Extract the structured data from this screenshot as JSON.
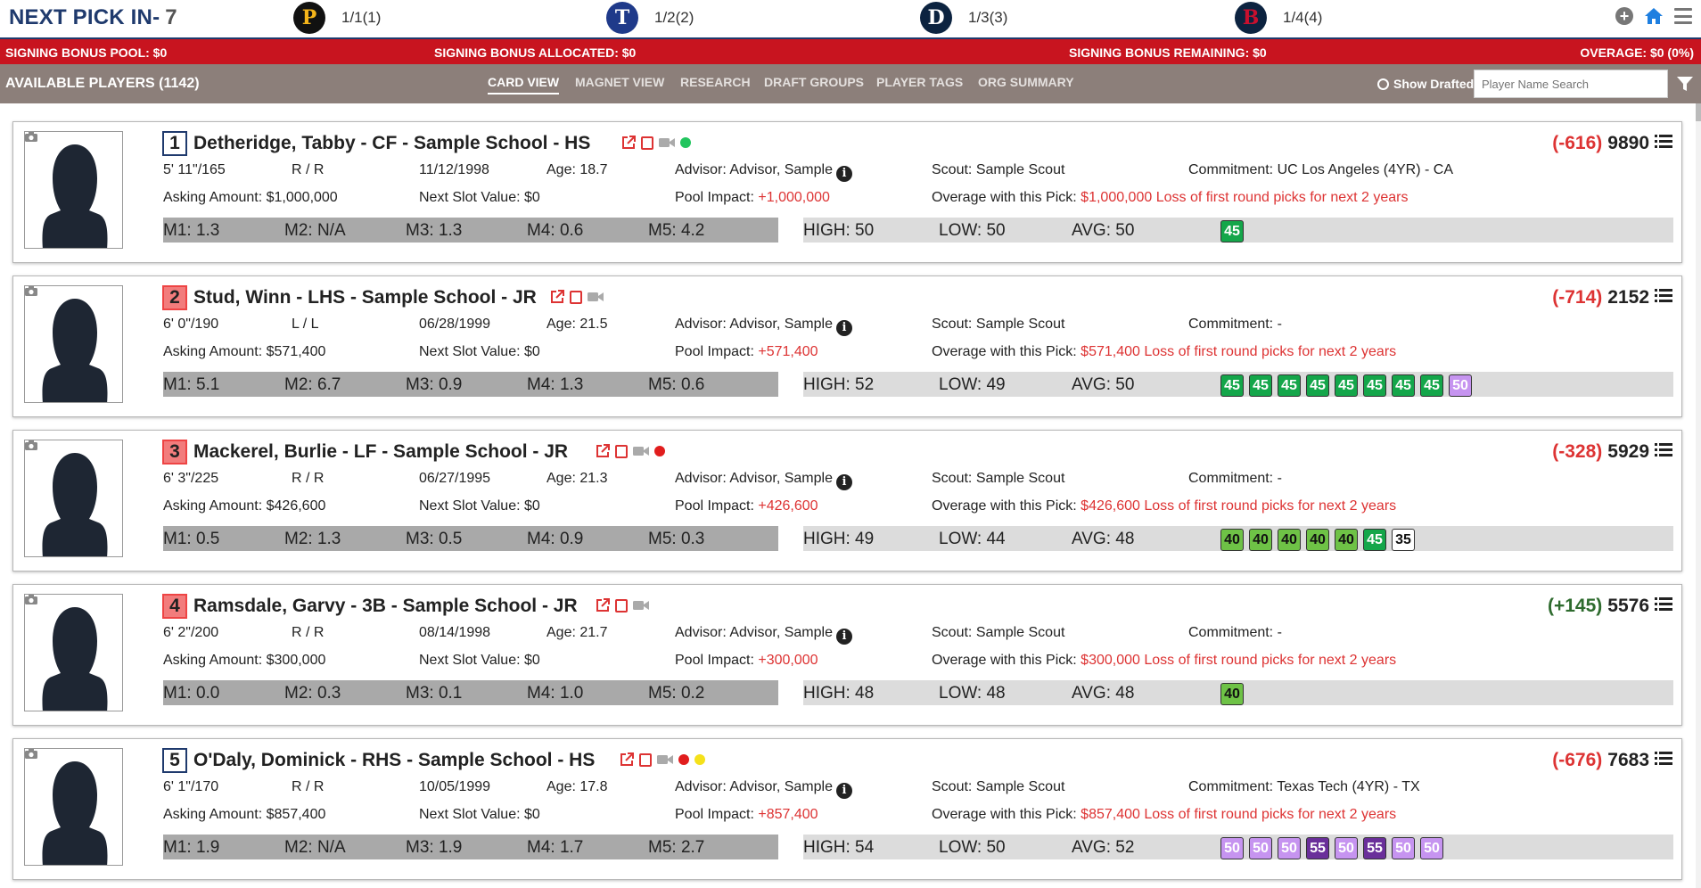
{
  "header": {
    "next_pick_label": "NEXT PICK IN-",
    "next_pick_count": "7",
    "teams": [
      {
        "icon": "pirates-p-logo",
        "letter": "P",
        "pick": "1/1(1)",
        "bg": "#111111",
        "fg": "#f4b41a"
      },
      {
        "icon": "rangers-t-logo",
        "letter": "T",
        "pick": "1/2(2)",
        "bg": "#1f3a8a",
        "fg": "#ffffff"
      },
      {
        "icon": "tigers-d-logo",
        "letter": "D",
        "pick": "1/3(3)",
        "bg": "#0c2340",
        "fg": "#ffffff"
      },
      {
        "icon": "redsox-b-logo",
        "letter": "B",
        "pick": "1/4(4)",
        "bg": "#0c2340",
        "fg": "#c8102e"
      }
    ]
  },
  "bonus": {
    "pool": "SIGNING BONUS POOL: $0",
    "allocated": "SIGNING BONUS ALLOCATED: $0",
    "remaining": "SIGNING BONUS REMAINING: $0",
    "overage": "OVERAGE: $0 (0%)"
  },
  "nav": {
    "available": "AVAILABLE PLAYERS (1142)",
    "tabs": [
      "CARD VIEW",
      "MAGNET VIEW",
      "RESEARCH",
      "DRAFT GROUPS",
      "PLAYER TAGS",
      "ORG SUMMARY"
    ],
    "active_tab": "CARD VIEW",
    "show_drafted": "Show Drafted",
    "search_placeholder": "Player Name Search"
  },
  "labels": {
    "asking": "Asking Amount: ",
    "next_slot": "Next Slot Value: ",
    "pool_impact": "Pool Impact: ",
    "overage": "Overage with this Pick: ",
    "loss": "Loss of first round picks for next 2 years",
    "advisor": "Advisor: ",
    "scout": "Scout: ",
    "commitment": "Commitment: ",
    "age": "Age: "
  },
  "players": [
    {
      "rank": "1",
      "rank_style": "plain",
      "name": "Detheridge, Tabby - CF - Sample School - HS",
      "status_dots": [
        "#22c55e"
      ],
      "delta": "(-616)",
      "delta_sign": "neg",
      "total": "9890",
      "height_weight": "5' 11\"/165",
      "bats_throws": "R / R",
      "dob": "11/12/1998",
      "age": "18.7",
      "advisor": "Advisor, Sample",
      "scout": "Sample Scout",
      "commitment": "UC Los Angeles (4YR) - CA",
      "asking": "$1,000,000",
      "next_slot": "$0",
      "pool_impact": "+1,000,000",
      "overage": "$1,000,000",
      "m1": "M1: 1.3",
      "m2": "M2: N/A",
      "m3": "M3: 1.3",
      "m4": "M4: 0.6",
      "m5": "M5: 4.2",
      "high": "HIGH: 50",
      "low": "LOW: 50",
      "avg": "AVG: 50",
      "grades": [
        {
          "v": "45",
          "c": "green"
        }
      ]
    },
    {
      "rank": "2",
      "rank_style": "pink",
      "name": "Stud, Winn - LHS - Sample School - JR",
      "status_dots": [],
      "delta": "(-714)",
      "delta_sign": "neg",
      "total": "2152",
      "height_weight": "6' 0\"/190",
      "bats_throws": "L / L",
      "dob": "06/28/1999",
      "age": "21.5",
      "advisor": "Advisor, Sample",
      "scout": "Sample Scout",
      "commitment": "-",
      "asking": "$571,400",
      "next_slot": "$0",
      "pool_impact": "+571,400",
      "overage": "$571,400",
      "m1": "M1: 5.1",
      "m2": "M2: 6.7",
      "m3": "M3: 0.9",
      "m4": "M4: 1.3",
      "m5": "M5: 0.6",
      "high": "HIGH: 52",
      "low": "LOW: 49",
      "avg": "AVG: 50",
      "grades": [
        {
          "v": "45",
          "c": "green"
        },
        {
          "v": "45",
          "c": "green"
        },
        {
          "v": "45",
          "c": "green"
        },
        {
          "v": "45",
          "c": "green"
        },
        {
          "v": "45",
          "c": "green"
        },
        {
          "v": "45",
          "c": "green"
        },
        {
          "v": "45",
          "c": "green"
        },
        {
          "v": "45",
          "c": "green"
        },
        {
          "v": "50",
          "c": "violet"
        }
      ]
    },
    {
      "rank": "3",
      "rank_style": "pink",
      "name": "Mackerel, Burlie - LF - Sample School - JR",
      "status_dots": [
        "#e11d1d"
      ],
      "delta": "(-328)",
      "delta_sign": "neg",
      "total": "5929",
      "height_weight": "6' 3\"/225",
      "bats_throws": "R / R",
      "dob": "06/27/1995",
      "age": "21.3",
      "advisor": "Advisor, Sample",
      "scout": "Sample Scout",
      "commitment": "-",
      "asking": "$426,600",
      "next_slot": "$0",
      "pool_impact": "+426,600",
      "overage": "$426,600",
      "m1": "M1: 0.5",
      "m2": "M2: 1.3",
      "m3": "M3: 0.5",
      "m4": "M4: 0.9",
      "m5": "M5: 0.3",
      "high": "HIGH: 49",
      "low": "LOW: 44",
      "avg": "AVG: 48",
      "grades": [
        {
          "v": "40",
          "c": "lime"
        },
        {
          "v": "40",
          "c": "lime"
        },
        {
          "v": "40",
          "c": "lime"
        },
        {
          "v": "40",
          "c": "lime"
        },
        {
          "v": "40",
          "c": "lime"
        },
        {
          "v": "45",
          "c": "green"
        },
        {
          "v": "35",
          "c": "white"
        }
      ]
    },
    {
      "rank": "4",
      "rank_style": "pink",
      "name": "Ramsdale, Garvy - 3B - Sample School - JR",
      "status_dots": [],
      "delta": "(+145)",
      "delta_sign": "pos",
      "total": "5576",
      "height_weight": "6' 2\"/200",
      "bats_throws": "R / R",
      "dob": "08/14/1998",
      "age": "21.7",
      "advisor": "Advisor, Sample",
      "scout": "Sample Scout",
      "commitment": "-",
      "asking": "$300,000",
      "next_slot": "$0",
      "pool_impact": "+300,000",
      "overage": "$300,000",
      "m1": "M1: 0.0",
      "m2": "M2: 0.3",
      "m3": "M3: 0.1",
      "m4": "M4: 1.0",
      "m5": "M5: 0.2",
      "high": "HIGH: 48",
      "low": "LOW: 48",
      "avg": "AVG: 48",
      "grades": [
        {
          "v": "40",
          "c": "lime"
        }
      ]
    },
    {
      "rank": "5",
      "rank_style": "plain",
      "name": "O'Daly, Dominick - RHS - Sample School - HS",
      "status_dots": [
        "#e11d1d",
        "#f5e11a"
      ],
      "delta": "(-676)",
      "delta_sign": "neg",
      "total": "7683",
      "height_weight": "6' 1\"/170",
      "bats_throws": "R / R",
      "dob": "10/05/1999",
      "age": "17.8",
      "advisor": "Advisor, Sample",
      "scout": "Sample Scout",
      "commitment": "Texas Tech (4YR) - TX",
      "asking": "$857,400",
      "next_slot": "$0",
      "pool_impact": "+857,400",
      "overage": "$857,400",
      "m1": "M1: 1.9",
      "m2": "M2: N/A",
      "m3": "M3: 1.9",
      "m4": "M4: 1.7",
      "m5": "M5: 2.7",
      "high": "HIGH: 54",
      "low": "LOW: 50",
      "avg": "AVG: 52",
      "grades": [
        {
          "v": "50",
          "c": "violet"
        },
        {
          "v": "50",
          "c": "violet"
        },
        {
          "v": "50",
          "c": "violet"
        },
        {
          "v": "55",
          "c": "purple"
        },
        {
          "v": "50",
          "c": "violet"
        },
        {
          "v": "55",
          "c": "purple"
        },
        {
          "v": "50",
          "c": "violet"
        },
        {
          "v": "50",
          "c": "violet"
        }
      ]
    }
  ]
}
